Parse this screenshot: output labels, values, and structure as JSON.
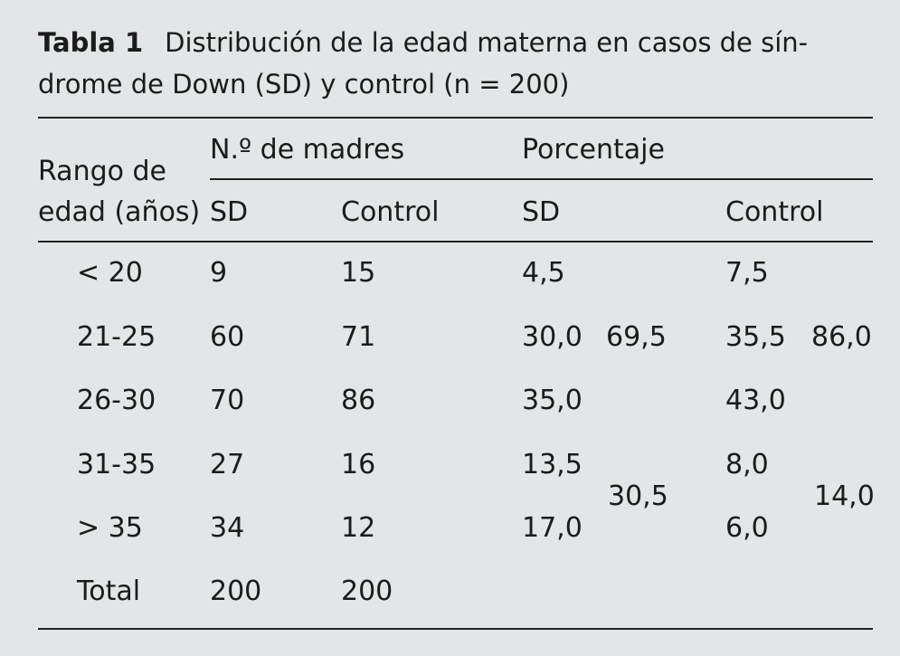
{
  "caption": {
    "label": "Tabla 1",
    "line1": "Distribución de la edad materna en casos de sín-",
    "line2": "drome de Down (SD) y control (n = 200)"
  },
  "header": {
    "age_col_line1": "Rango de",
    "age_col_line2": "edad (años)",
    "group_mothers": "N.º de madres",
    "group_percent": "Porcentaje",
    "sd": "SD",
    "control": "Control"
  },
  "rows": [
    {
      "age": "< 20",
      "n_sd": "9",
      "n_control": "15",
      "pct_sd": "4,5",
      "pct_control": "7,5"
    },
    {
      "age": "21-25",
      "n_sd": "60",
      "n_control": "71",
      "pct_sd": "30,0",
      "pct_control": "35,5"
    },
    {
      "age": "26-30",
      "n_sd": "70",
      "n_control": "86",
      "pct_sd": "35,0",
      "pct_control": "43,0"
    },
    {
      "age": "31-35",
      "n_sd": "27",
      "n_control": "16",
      "pct_sd": "13,5",
      "pct_control": "8,0"
    },
    {
      "age": "> 35",
      "n_sd": "34",
      "n_control": "12",
      "pct_sd": "17,0",
      "pct_control": "6,0"
    },
    {
      "age": "Total",
      "n_sd": "200",
      "n_control": "200",
      "pct_sd": "",
      "pct_control": ""
    }
  ],
  "subtotals": {
    "sd_under_31": "69,5",
    "control_under_31": "86,0",
    "sd_31_plus": "30,5",
    "control_31_plus": "14,0"
  }
}
